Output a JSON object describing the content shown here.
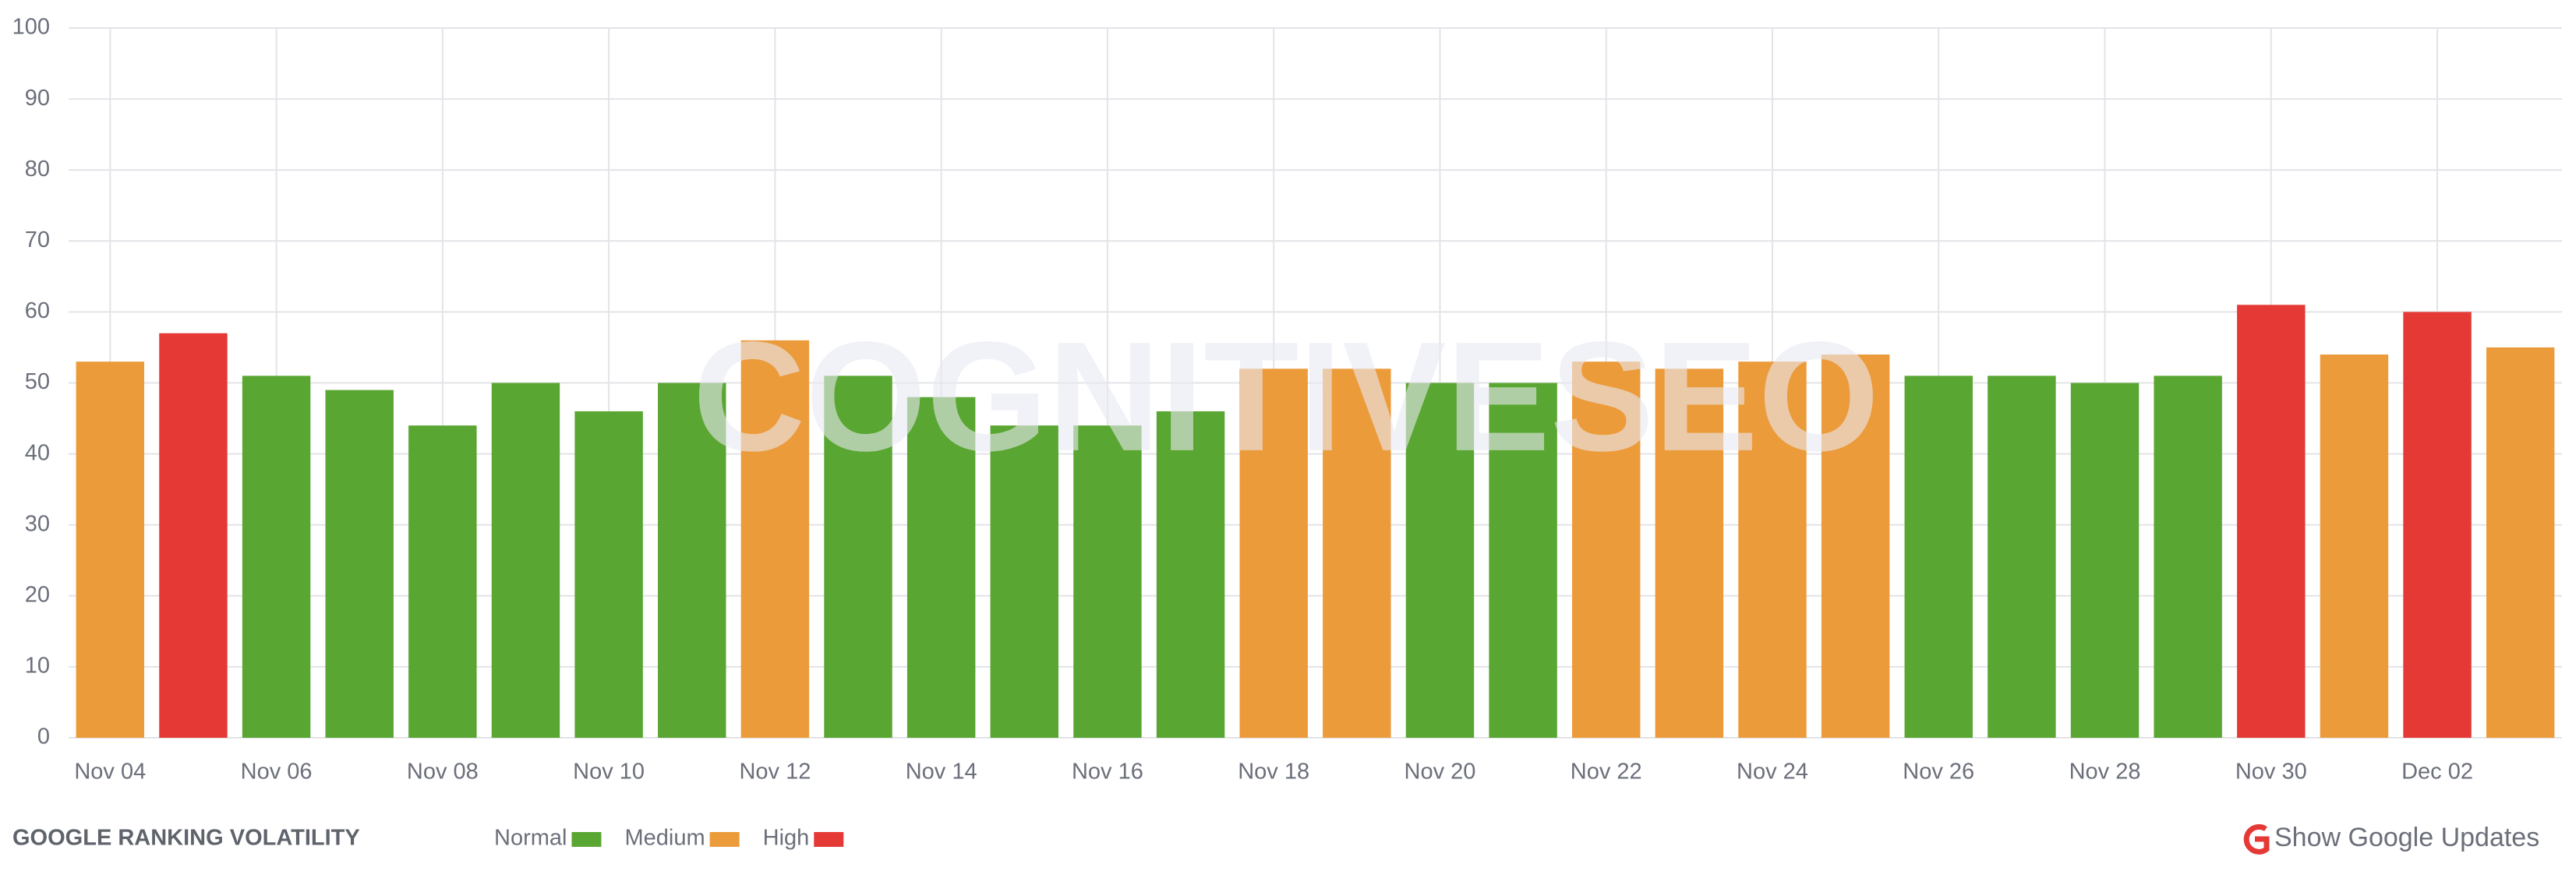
{
  "chart_data": {
    "type": "bar",
    "title": "GOOGLE RANKING VOLATILITY",
    "watermark": "COGNITIVESEO",
    "categories": [
      "Nov 04",
      null,
      "Nov 06",
      null,
      "Nov 08",
      null,
      "Nov 10",
      null,
      "Nov 12",
      null,
      "Nov 14",
      null,
      "Nov 16",
      null,
      "Nov 18",
      null,
      "Nov 20",
      null,
      "Nov 22",
      null,
      "Nov 24",
      null,
      "Nov 26",
      null,
      "Nov 28",
      null,
      "Nov 30",
      null,
      "Dec 02",
      null
    ],
    "values": [
      53,
      57,
      51,
      49,
      44,
      50,
      46,
      50,
      56,
      51,
      48,
      44,
      44,
      46,
      52,
      52,
      50,
      50,
      53,
      52,
      53,
      54,
      51,
      51,
      50,
      51,
      61,
      54,
      60,
      55
    ],
    "colors": [
      "#ec9b3b",
      "#e53935",
      "#5aa632",
      "#5aa632",
      "#5aa632",
      "#5aa632",
      "#5aa632",
      "#5aa632",
      "#ec9b3b",
      "#5aa632",
      "#5aa632",
      "#5aa632",
      "#5aa632",
      "#5aa632",
      "#ec9b3b",
      "#ec9b3b",
      "#5aa632",
      "#5aa632",
      "#ec9b3b",
      "#ec9b3b",
      "#ec9b3b",
      "#ec9b3b",
      "#5aa632",
      "#5aa632",
      "#5aa632",
      "#5aa632",
      "#e53935",
      "#ec9b3b",
      "#e53935",
      "#ec9b3b"
    ],
    "legend": [
      {
        "name": "Normal",
        "color": "#5aa632"
      },
      {
        "name": "Medium",
        "color": "#ec9b3b"
      },
      {
        "name": "High",
        "color": "#e53935"
      }
    ],
    "ylim": [
      0,
      100
    ],
    "yticks": [
      0,
      10,
      20,
      30,
      40,
      50,
      60,
      70,
      80,
      90,
      100
    ],
    "grid": true,
    "button": "Show Google Updates"
  }
}
